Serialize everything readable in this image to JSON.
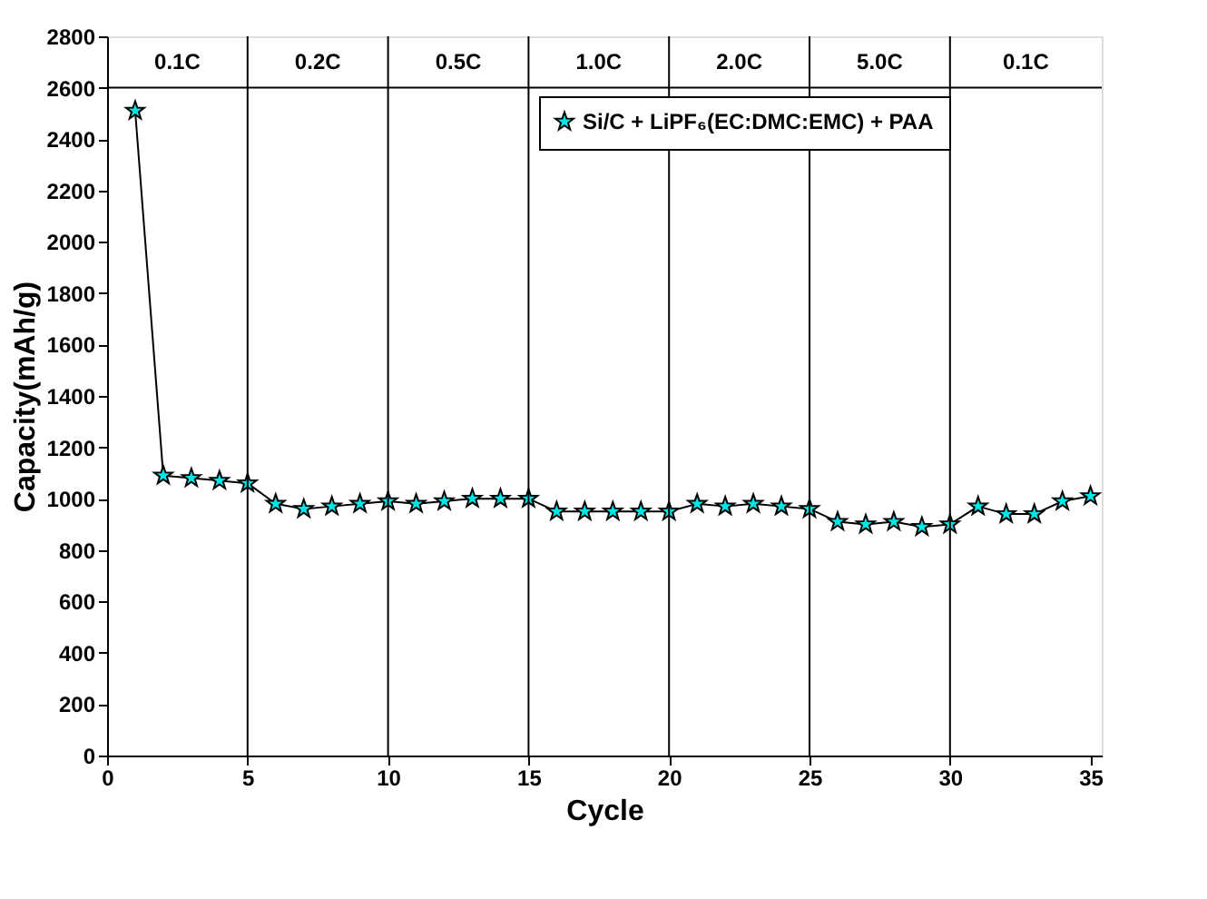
{
  "chart_data": {
    "type": "line",
    "xlabel": "Cycle",
    "ylabel": "Capacity(mAh/g)",
    "x": [
      1,
      2,
      3,
      4,
      5,
      6,
      7,
      8,
      9,
      10,
      11,
      12,
      13,
      14,
      15,
      16,
      17,
      18,
      19,
      20,
      21,
      22,
      23,
      24,
      25,
      26,
      27,
      28,
      29,
      30,
      31,
      32,
      33,
      34,
      35
    ],
    "series": [
      {
        "name": "Si/C + LiPF₆(EC:DMC:EMC) + PAA",
        "color": "#00e5e5",
        "values": [
          2510,
          1090,
          1080,
          1070,
          1060,
          980,
          960,
          970,
          980,
          990,
          980,
          990,
          1000,
          1000,
          1000,
          950,
          950,
          950,
          950,
          950,
          980,
          970,
          980,
          970,
          960,
          910,
          900,
          910,
          890,
          900,
          970,
          940,
          940,
          990,
          1010
        ]
      }
    ],
    "xlim": [
      0,
      35.4
    ],
    "xticks": [
      0,
      5,
      10,
      15,
      20,
      25,
      30,
      35
    ],
    "ylim": [
      0,
      2800
    ],
    "yticks": [
      0,
      200,
      400,
      600,
      800,
      1000,
      1200,
      1400,
      1600,
      1800,
      2000,
      2200,
      2400,
      2600,
      2800
    ],
    "annotations": [
      "0.1C",
      "0.2C",
      "0.5C",
      "1.0C",
      "2.0C",
      "5.0C",
      "0.1C"
    ],
    "ref_lines": [
      {
        "axis": "y",
        "value": 2600
      },
      {
        "axis": "x",
        "value": 5
      },
      {
        "axis": "x",
        "value": 10
      },
      {
        "axis": "x",
        "value": 15
      },
      {
        "axis": "x",
        "value": 20
      },
      {
        "axis": "x",
        "value": 25
      },
      {
        "axis": "x",
        "value": 30
      }
    ],
    "marker": "star",
    "line_style": "solid",
    "legend": "top right",
    "grid": false
  }
}
